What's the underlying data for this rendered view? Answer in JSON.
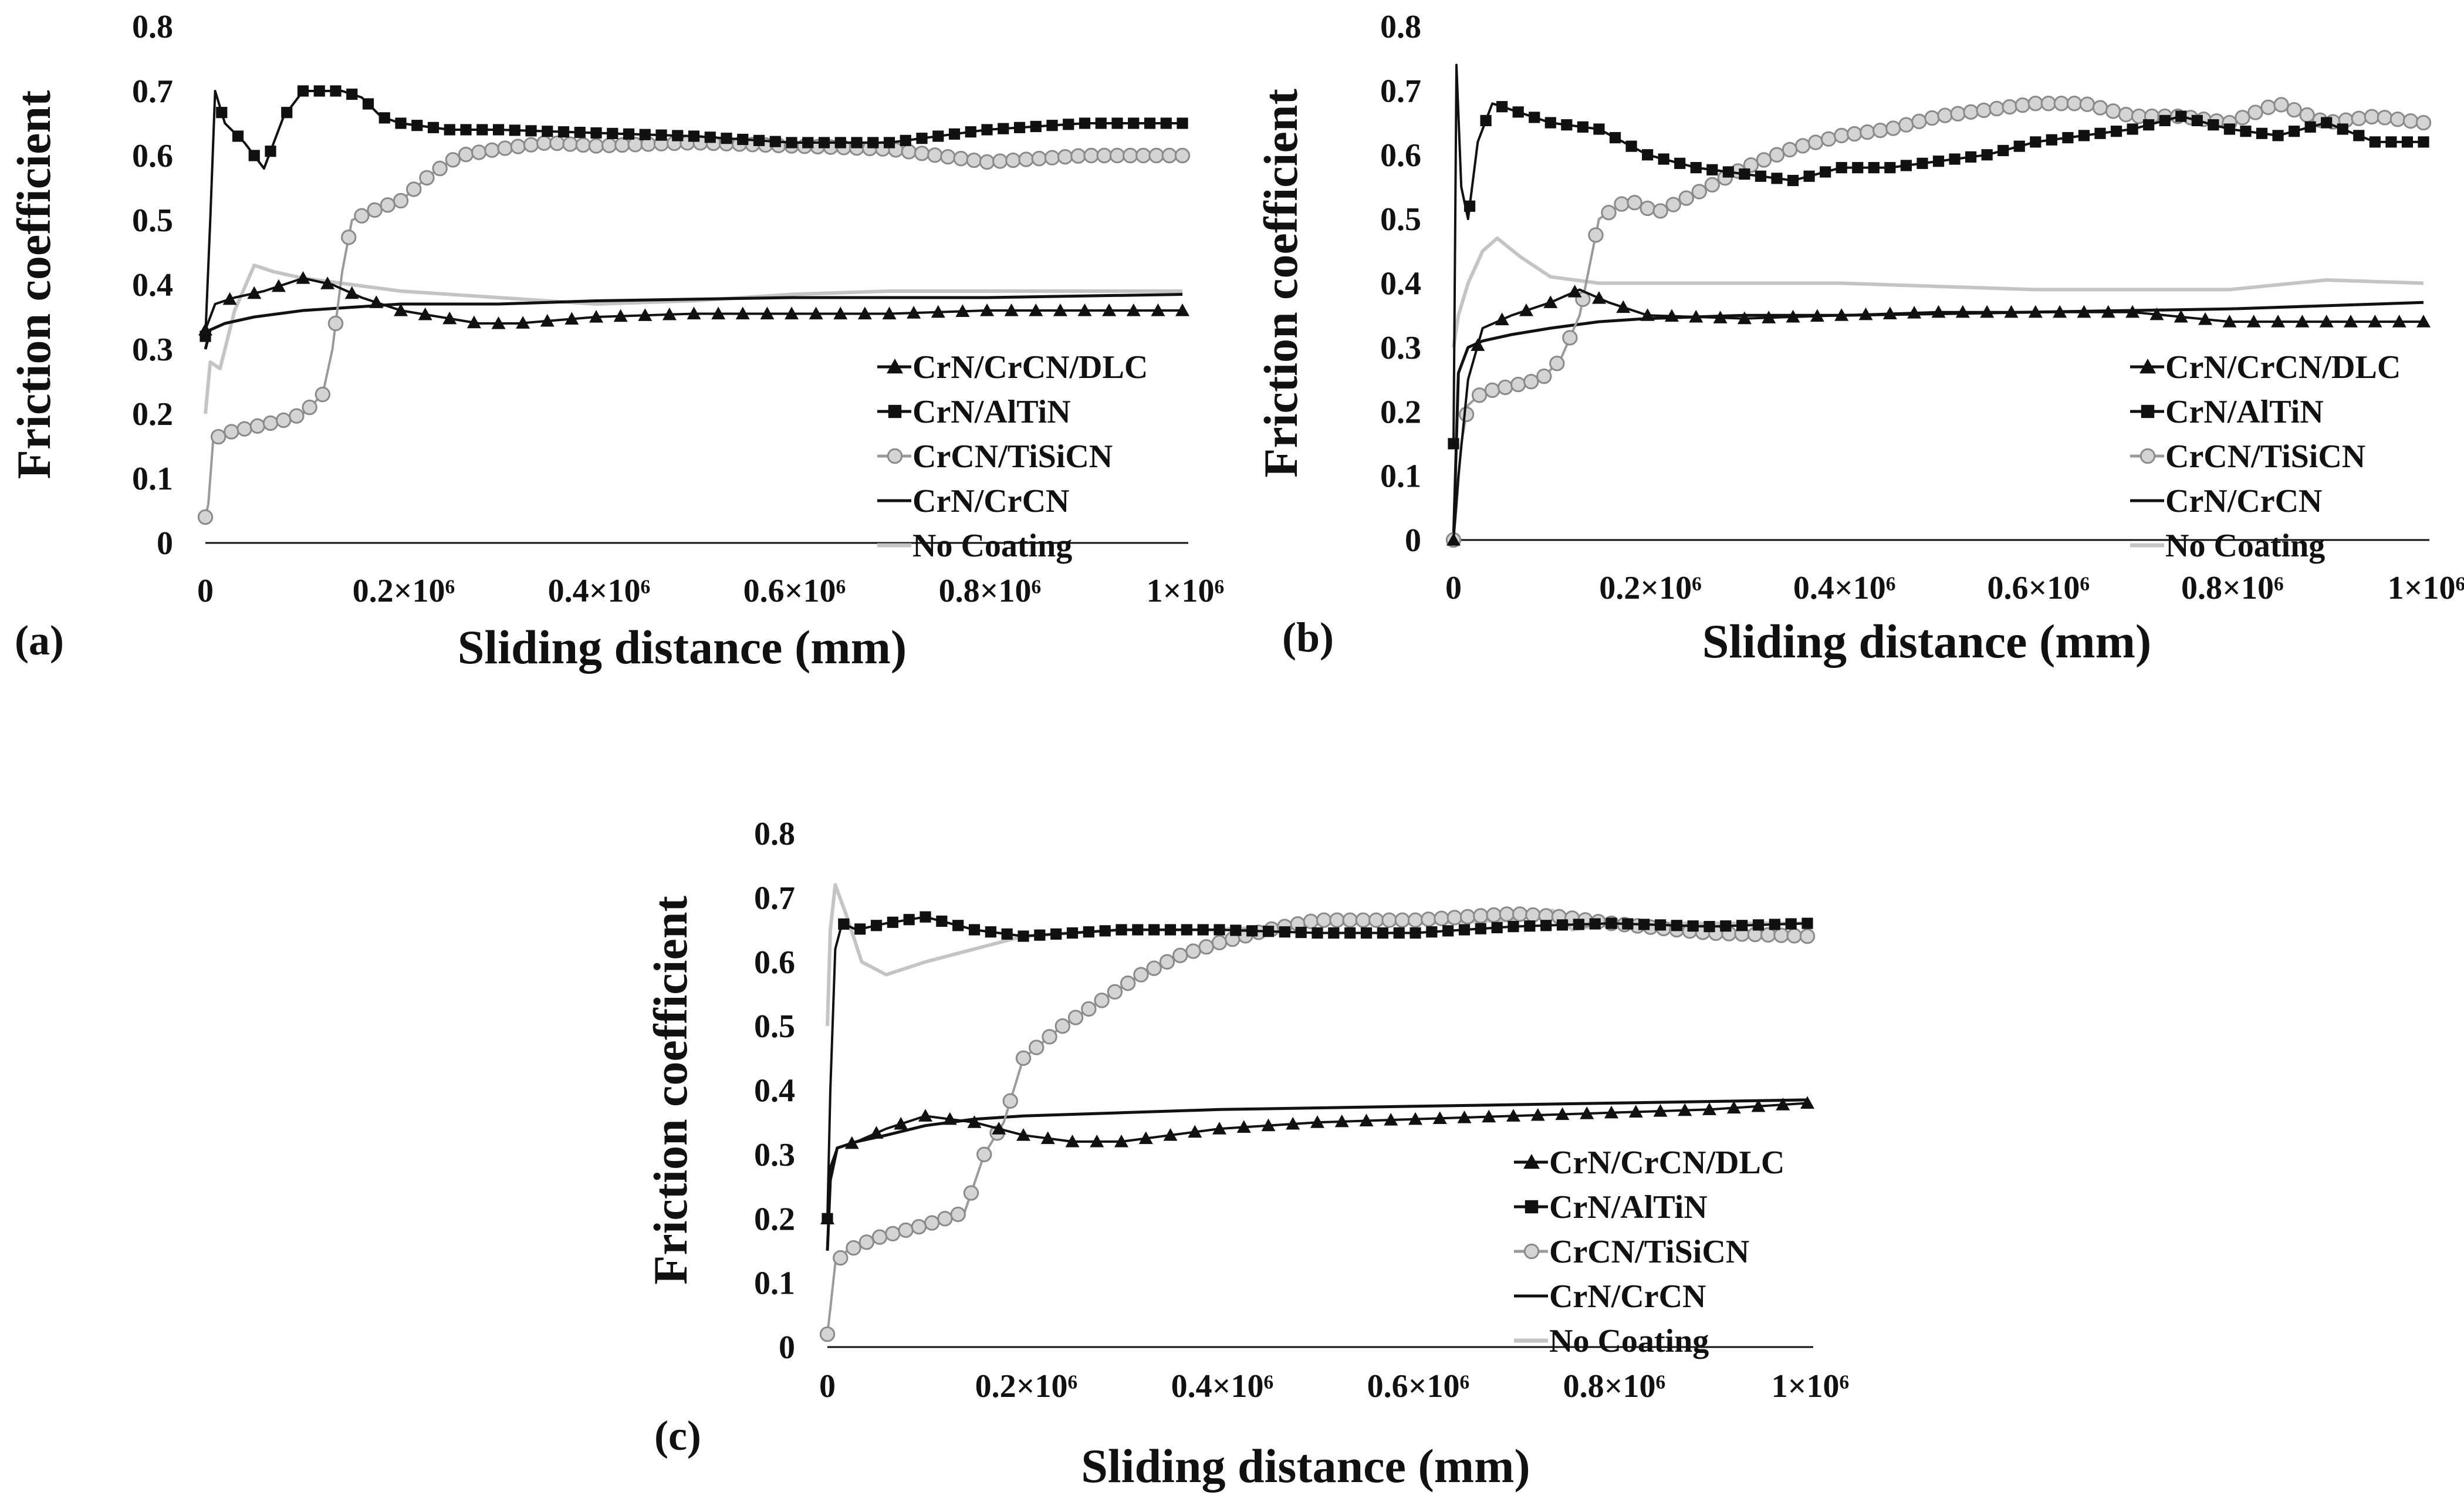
{
  "figure": {
    "panels": [
      "(a)",
      "(b)",
      "(c)"
    ]
  },
  "chart_data": [
    {
      "type": "line",
      "panel": "(a)",
      "xlabel": "Sliding distance (mm)",
      "ylabel": "Friction coefficient",
      "ylim": [
        0,
        0.8
      ],
      "xlim": [
        0,
        1000000
      ],
      "yticks": [
        "0",
        "0.1",
        "0.2",
        "0.3",
        "0.4",
        "0.5",
        "0.6",
        "0.7",
        "0.8"
      ],
      "xticks": [
        "0",
        "0.2×10⁶",
        "0.4×10⁶",
        "0.6×10⁶",
        "0.8×10⁶",
        "1×10⁶"
      ],
      "legend_position": "bottom-right",
      "series": [
        {
          "name": "CrN/CrCN/DLC",
          "marker": "triangle",
          "color": "#111111",
          "x": [
            0,
            10000,
            30000,
            60000,
            100000,
            130000,
            160000,
            200000,
            240000,
            280000,
            320000,
            400000,
            500000,
            600000,
            700000,
            800000,
            900000,
            1000000
          ],
          "y": [
            0.33,
            0.37,
            0.38,
            0.39,
            0.41,
            0.4,
            0.38,
            0.36,
            0.35,
            0.34,
            0.34,
            0.35,
            0.355,
            0.355,
            0.355,
            0.36,
            0.36,
            0.36
          ]
        },
        {
          "name": "CrN/AlTiN",
          "marker": "square",
          "color": "#111111",
          "x": [
            0,
            5000,
            10000,
            20000,
            40000,
            60000,
            80000,
            100000,
            120000,
            140000,
            160000,
            180000,
            200000,
            250000,
            300000,
            400000,
            500000,
            600000,
            700000,
            800000,
            900000,
            1000000
          ],
          "y": [
            0.32,
            0.5,
            0.7,
            0.65,
            0.62,
            0.58,
            0.66,
            0.7,
            0.7,
            0.7,
            0.69,
            0.66,
            0.65,
            0.64,
            0.64,
            0.635,
            0.63,
            0.62,
            0.62,
            0.64,
            0.65,
            0.65
          ]
        },
        {
          "name": "CrCN/TiSiCN",
          "marker": "circle",
          "color": "#9a9a9a",
          "x": [
            0,
            3000,
            8000,
            20000,
            50000,
            80000,
            100000,
            120000,
            130000,
            140000,
            150000,
            180000,
            200000,
            230000,
            260000,
            300000,
            350000,
            400000,
            500000,
            600000,
            700000,
            800000,
            900000,
            1000000
          ],
          "y": [
            0.04,
            0.06,
            0.16,
            0.17,
            0.18,
            0.19,
            0.2,
            0.23,
            0.3,
            0.42,
            0.5,
            0.52,
            0.53,
            0.57,
            0.6,
            0.61,
            0.62,
            0.615,
            0.62,
            0.615,
            0.61,
            0.59,
            0.6,
            0.6
          ]
        },
        {
          "name": "CrN/CrCN",
          "marker": "none",
          "color": "#111111",
          "x": [
            0,
            5000,
            20000,
            50000,
            100000,
            150000,
            200000,
            300000,
            400000,
            600000,
            800000,
            1000000
          ],
          "y": [
            0.3,
            0.33,
            0.34,
            0.35,
            0.36,
            0.365,
            0.37,
            0.37,
            0.375,
            0.38,
            0.38,
            0.385
          ]
        },
        {
          "name": "No Coating",
          "marker": "none",
          "color": "#c4c4c4",
          "x": [
            0,
            5000,
            15000,
            30000,
            50000,
            70000,
            100000,
            150000,
            200000,
            300000,
            400000,
            500000,
            600000,
            700000,
            800000,
            900000,
            1000000
          ],
          "y": [
            0.2,
            0.28,
            0.27,
            0.36,
            0.43,
            0.42,
            0.41,
            0.4,
            0.39,
            0.38,
            0.37,
            0.375,
            0.385,
            0.39,
            0.39,
            0.39,
            0.39
          ]
        }
      ]
    },
    {
      "type": "line",
      "panel": "(b)",
      "xlabel": "Sliding distance (mm)",
      "ylabel": "Friction coefficient",
      "ylim": [
        0,
        0.8
      ],
      "xlim": [
        0,
        1000000
      ],
      "yticks": [
        "0",
        "0.1",
        "0.2",
        "0.3",
        "0.4",
        "0.5",
        "0.6",
        "0.7",
        "0.8"
      ],
      "xticks": [
        "0",
        "0.2×10⁶",
        "0.4×10⁶",
        "0.6×10⁶",
        "0.8×10⁶",
        "1×10⁶"
      ],
      "legend_position": "bottom-right",
      "series": [
        {
          "name": "CrN/CrCN/DLC",
          "marker": "triangle",
          "color": "#111111",
          "x": [
            0,
            5000,
            15000,
            30000,
            60000,
            100000,
            130000,
            160000,
            200000,
            300000,
            400000,
            500000,
            600000,
            700000,
            800000,
            900000,
            1000000
          ],
          "y": [
            0.0,
            0.1,
            0.25,
            0.33,
            0.35,
            0.37,
            0.39,
            0.37,
            0.35,
            0.345,
            0.35,
            0.355,
            0.355,
            0.355,
            0.34,
            0.34,
            0.34
          ]
        },
        {
          "name": "CrN/AlTiN",
          "marker": "square",
          "color": "#111111",
          "x": [
            0,
            3000,
            8000,
            15000,
            25000,
            40000,
            60000,
            100000,
            150000,
            200000,
            250000,
            300000,
            350000,
            400000,
            450000,
            500000,
            550000,
            600000,
            650000,
            700000,
            750000,
            800000,
            850000,
            900000,
            950000,
            1000000
          ],
          "y": [
            0.15,
            0.74,
            0.55,
            0.5,
            0.62,
            0.68,
            0.67,
            0.65,
            0.64,
            0.6,
            0.58,
            0.57,
            0.56,
            0.58,
            0.58,
            0.59,
            0.6,
            0.62,
            0.63,
            0.64,
            0.66,
            0.64,
            0.63,
            0.65,
            0.62,
            0.62
          ]
        },
        {
          "name": "CrCN/TiSiCN",
          "marker": "circle",
          "color": "#9a9a9a",
          "x": [
            0,
            3000,
            8000,
            15000,
            30000,
            60000,
            90000,
            110000,
            130000,
            150000,
            180000,
            210000,
            250000,
            300000,
            350000,
            400000,
            450000,
            500000,
            550000,
            600000,
            650000,
            700000,
            750000,
            800000,
            850000,
            900000,
            950000,
            1000000
          ],
          "y": [
            0.0,
            0.05,
            0.15,
            0.21,
            0.23,
            0.24,
            0.25,
            0.28,
            0.35,
            0.5,
            0.53,
            0.51,
            0.54,
            0.58,
            0.61,
            0.63,
            0.64,
            0.66,
            0.67,
            0.68,
            0.68,
            0.66,
            0.66,
            0.65,
            0.68,
            0.65,
            0.66,
            0.65
          ]
        },
        {
          "name": "CrN/CrCN",
          "marker": "none",
          "color": "#111111",
          "x": [
            0,
            5000,
            15000,
            30000,
            60000,
            100000,
            150000,
            200000,
            300000,
            400000,
            600000,
            800000,
            1000000
          ],
          "y": [
            0.0,
            0.26,
            0.3,
            0.31,
            0.32,
            0.33,
            0.34,
            0.345,
            0.35,
            0.35,
            0.355,
            0.36,
            0.37
          ]
        },
        {
          "name": "No Coating",
          "marker": "none",
          "color": "#c4c4c4",
          "x": [
            0,
            5000,
            15000,
            30000,
            45000,
            70000,
            100000,
            150000,
            200000,
            300000,
            400000,
            500000,
            600000,
            700000,
            800000,
            900000,
            1000000
          ],
          "y": [
            0.3,
            0.35,
            0.4,
            0.45,
            0.47,
            0.44,
            0.41,
            0.4,
            0.4,
            0.4,
            0.4,
            0.395,
            0.39,
            0.39,
            0.39,
            0.405,
            0.4
          ]
        }
      ]
    },
    {
      "type": "line",
      "panel": "(c)",
      "xlabel": "Sliding distance (mm)",
      "ylabel": "Friction coefficient",
      "ylim": [
        0,
        0.8
      ],
      "xlim": [
        0,
        1000000
      ],
      "yticks": [
        "0",
        "0.1",
        "0.2",
        "0.3",
        "0.4",
        "0.5",
        "0.6",
        "0.7",
        "0.8"
      ],
      "xticks": [
        "0",
        "0.2×10⁶",
        "0.4×10⁶",
        "0.6×10⁶",
        "0.8×10⁶",
        "1×10⁶"
      ],
      "legend_position": "bottom-right",
      "series": [
        {
          "name": "CrN/CrCN/DLC",
          "marker": "triangle",
          "color": "#111111",
          "x": [
            0,
            3000,
            10000,
            30000,
            60000,
            100000,
            150000,
            200000,
            250000,
            300000,
            400000,
            500000,
            600000,
            700000,
            800000,
            900000,
            1000000
          ],
          "y": [
            0.2,
            0.28,
            0.31,
            0.32,
            0.34,
            0.36,
            0.35,
            0.33,
            0.32,
            0.32,
            0.34,
            0.35,
            0.355,
            0.36,
            0.365,
            0.37,
            0.38
          ]
        },
        {
          "name": "CrN/AlTiN",
          "marker": "square",
          "color": "#111111",
          "x": [
            0,
            3000,
            8000,
            15000,
            30000,
            60000,
            100000,
            150000,
            200000,
            300000,
            400000,
            500000,
            600000,
            700000,
            800000,
            900000,
            1000000
          ],
          "y": [
            0.2,
            0.4,
            0.62,
            0.66,
            0.65,
            0.66,
            0.67,
            0.65,
            0.64,
            0.65,
            0.65,
            0.645,
            0.645,
            0.655,
            0.66,
            0.655,
            0.66
          ]
        },
        {
          "name": "CrCN/TiSiCN",
          "marker": "circle",
          "color": "#9a9a9a",
          "x": [
            0,
            3000,
            8000,
            20000,
            50000,
            100000,
            140000,
            160000,
            180000,
            200000,
            240000,
            280000,
            320000,
            360000,
            400000,
            450000,
            500000,
            600000,
            700000,
            750000,
            800000,
            900000,
            1000000
          ],
          "y": [
            0.02,
            0.06,
            0.13,
            0.15,
            0.17,
            0.19,
            0.21,
            0.3,
            0.35,
            0.45,
            0.5,
            0.54,
            0.58,
            0.61,
            0.63,
            0.65,
            0.665,
            0.665,
            0.675,
            0.67,
            0.66,
            0.645,
            0.64
          ]
        },
        {
          "name": "CrN/CrCN",
          "marker": "none",
          "color": "#111111",
          "x": [
            0,
            3000,
            10000,
            30000,
            60000,
            100000,
            150000,
            200000,
            300000,
            400000,
            600000,
            800000,
            1000000
          ],
          "y": [
            0.15,
            0.26,
            0.31,
            0.32,
            0.33,
            0.345,
            0.355,
            0.36,
            0.365,
            0.37,
            0.375,
            0.38,
            0.385
          ]
        },
        {
          "name": "No Coating",
          "marker": "none",
          "color": "#c4c4c4",
          "x": [
            0,
            3000,
            8000,
            20000,
            35000,
            60000,
            100000,
            150000,
            200000,
            300000,
            400000,
            500000,
            600000,
            700000,
            740000,
            760000,
            800000,
            900000,
            1000000
          ],
          "y": [
            0.5,
            0.65,
            0.72,
            0.67,
            0.6,
            0.58,
            0.6,
            0.62,
            0.64,
            0.65,
            0.65,
            0.66,
            0.66,
            0.665,
            0.68,
            0.65,
            0.66,
            0.66,
            0.66
          ]
        }
      ]
    }
  ]
}
